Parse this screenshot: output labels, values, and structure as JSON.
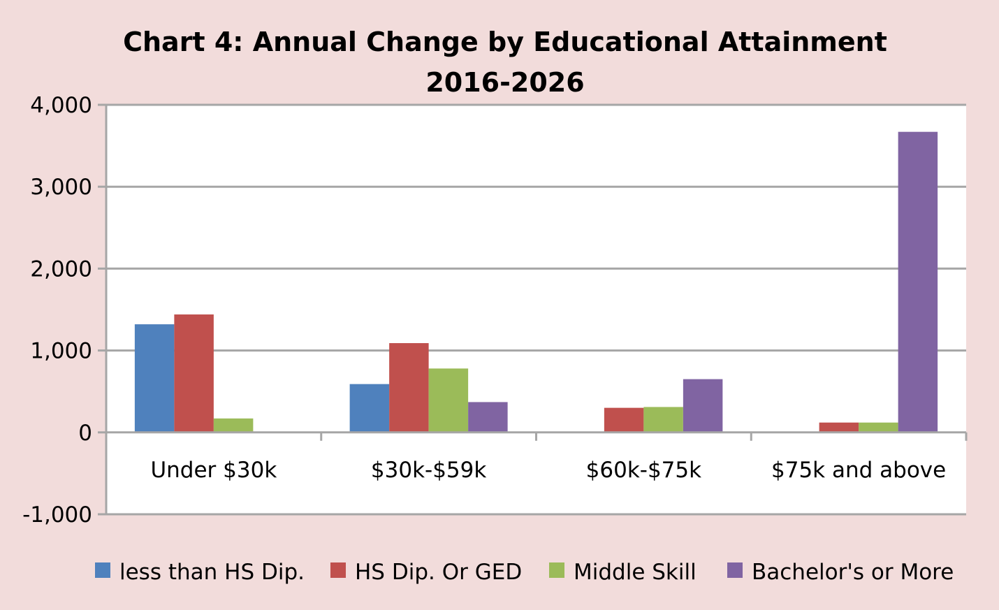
{
  "chart_data": {
    "type": "bar",
    "title": "Chart 4: Annual Change by Educational Attainment",
    "subtitle": "2016-2026",
    "categories": [
      "Under $30k",
      "$30k-$59k",
      "$60k-$75k",
      "$75k and above"
    ],
    "series": [
      {
        "name": "less than HS Dip.",
        "color": "#4f81bd",
        "values": [
          1320,
          590,
          0,
          0
        ]
      },
      {
        "name": "HS Dip. Or GED",
        "color": "#c0504d",
        "values": [
          1440,
          1090,
          300,
          120
        ]
      },
      {
        "name": "Middle Skill",
        "color": "#9bbb59",
        "values": [
          170,
          780,
          310,
          120
        ]
      },
      {
        "name": "Bachelor's or More",
        "color": "#8064a2",
        "values": [
          0,
          370,
          650,
          3670
        ]
      }
    ],
    "ylim": [
      -1000,
      4000
    ],
    "yticks": [
      -1000,
      0,
      1000,
      2000,
      3000,
      4000
    ],
    "ytick_labels": [
      "-1,000",
      "0",
      "1,000",
      "2,000",
      "3,000",
      "4,000"
    ],
    "grid": true,
    "legend_position": "bottom",
    "colors": {
      "background": "#f2dcdb",
      "plot_area": "#ffffff",
      "gridline": "#a6a6a6"
    }
  }
}
